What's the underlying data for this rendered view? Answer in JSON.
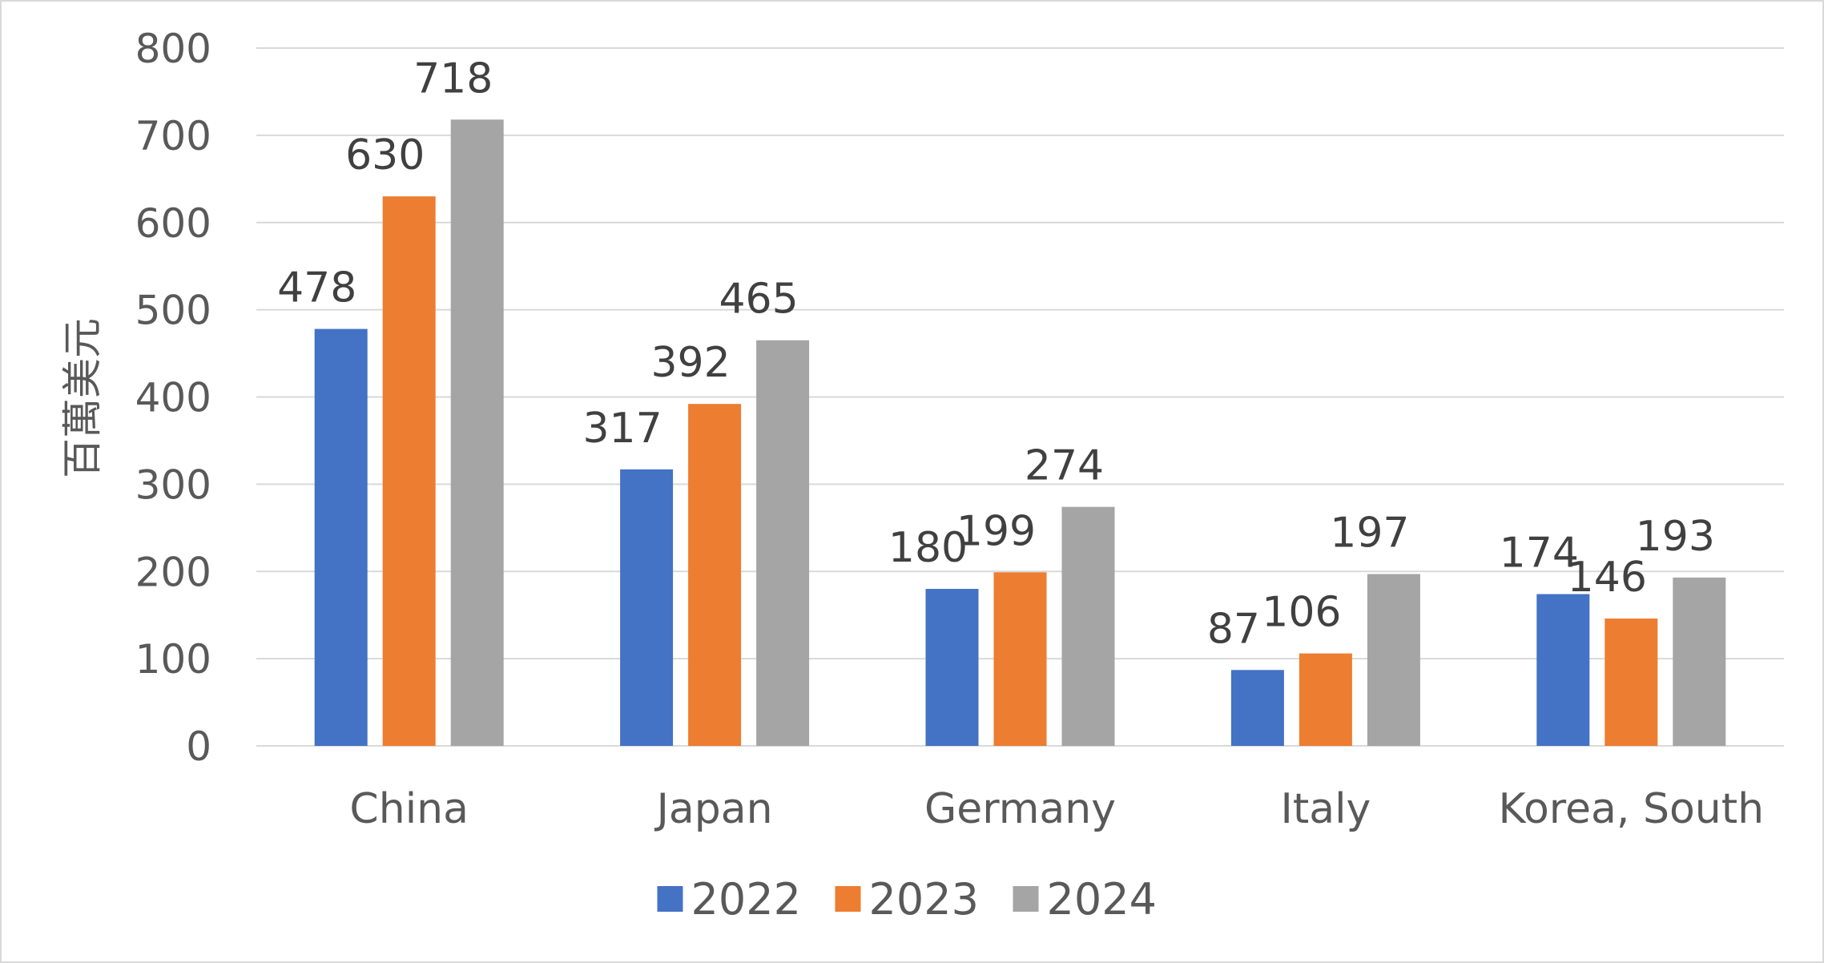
{
  "chart_data": {
    "type": "bar",
    "title": "",
    "xlabel": "",
    "ylabel": "百萬美元",
    "categories": [
      "China",
      "Japan",
      "Germany",
      "Italy",
      "Korea, South"
    ],
    "series": [
      {
        "name": "2022",
        "color": "#4472C4",
        "values": [
          478,
          317,
          180,
          87,
          174
        ]
      },
      {
        "name": "2023",
        "color": "#ED7D31",
        "values": [
          630,
          392,
          199,
          106,
          146
        ]
      },
      {
        "name": "2024",
        "color": "#A5A5A5",
        "values": [
          718,
          465,
          274,
          197,
          193
        ]
      }
    ],
    "ylim": [
      0,
      800
    ],
    "yticks": [
      0,
      100,
      200,
      300,
      400,
      500,
      600,
      700,
      800
    ],
    "grid": true,
    "legend_position": "bottom",
    "data_labels": true
  }
}
